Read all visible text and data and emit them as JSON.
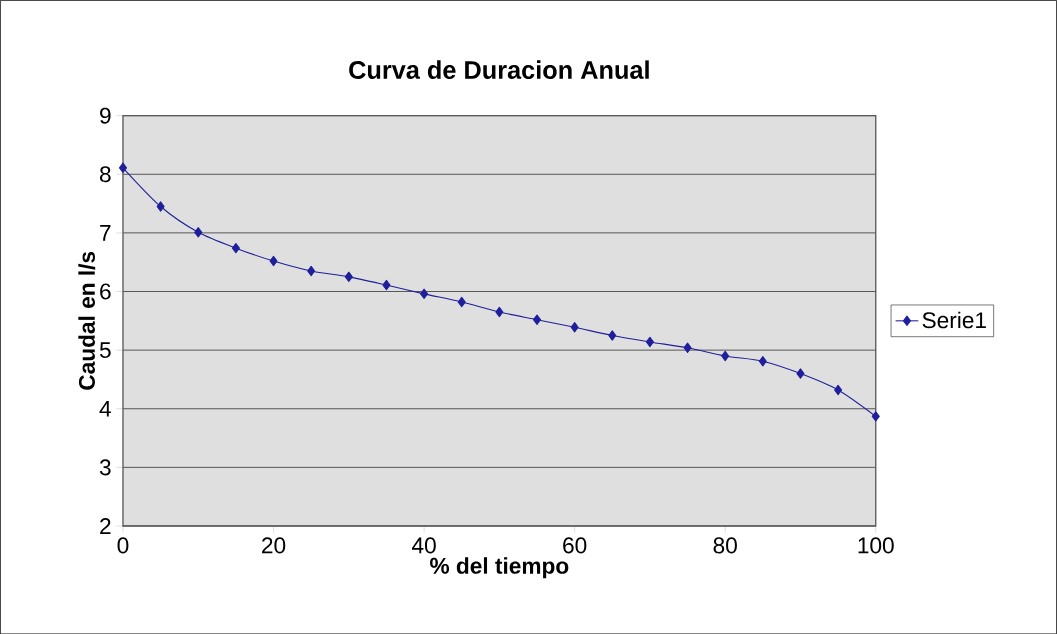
{
  "chart_data": {
    "type": "line",
    "title": "Curva de Duracion Anual",
    "xlabel": "% del tiempo",
    "ylabel": "Caudal en l/s",
    "x": [
      0,
      5,
      10,
      15,
      20,
      25,
      30,
      35,
      40,
      45,
      50,
      55,
      60,
      65,
      70,
      75,
      80,
      85,
      90,
      95,
      100
    ],
    "series": [
      {
        "name": "Serie1",
        "color": "#1f1f9c",
        "values": [
          8.11,
          7.45,
          7.01,
          6.74,
          6.52,
          6.35,
          6.25,
          6.11,
          5.96,
          5.82,
          5.65,
          5.52,
          5.39,
          5.25,
          5.14,
          5.04,
          4.9,
          4.81,
          4.6,
          4.32,
          3.87
        ]
      }
    ],
    "xlim": [
      0,
      100
    ],
    "xticks": [
      0,
      20,
      40,
      60,
      80,
      100
    ],
    "ylim": [
      2,
      9
    ],
    "yticks": [
      2,
      3,
      4,
      5,
      6,
      7,
      8,
      9
    ],
    "grid": "y",
    "legend": "right",
    "marker": "diamond",
    "line_style": "solid"
  }
}
